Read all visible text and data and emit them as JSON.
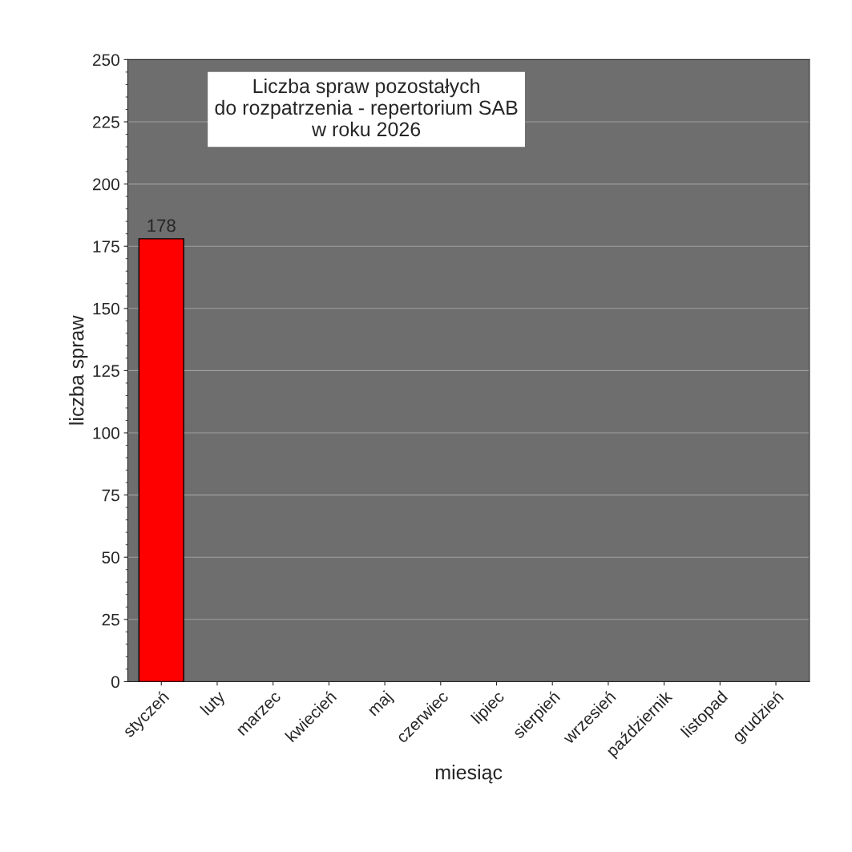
{
  "chart_data": {
    "type": "bar",
    "title": "Liczba spraw pozostałych\ndo rozpatrzenia - repertorium SAB\nw roku 2026",
    "xlabel": "miesiąc",
    "ylabel": "liczba spraw",
    "categories": [
      "styczeń",
      "luty",
      "marzec",
      "kwiecień",
      "maj",
      "czerwiec",
      "lipiec",
      "sierpień",
      "wrzesień",
      "październik",
      "listopad",
      "grudzień"
    ],
    "values": [
      178,
      null,
      null,
      null,
      null,
      null,
      null,
      null,
      null,
      null,
      null,
      null
    ],
    "color": "#ff0000",
    "data_labels": true,
    "ylim": [
      0,
      250
    ],
    "yticks": [
      0,
      25,
      50,
      75,
      100,
      125,
      150,
      175,
      200,
      225,
      250
    ],
    "grid": "y"
  }
}
